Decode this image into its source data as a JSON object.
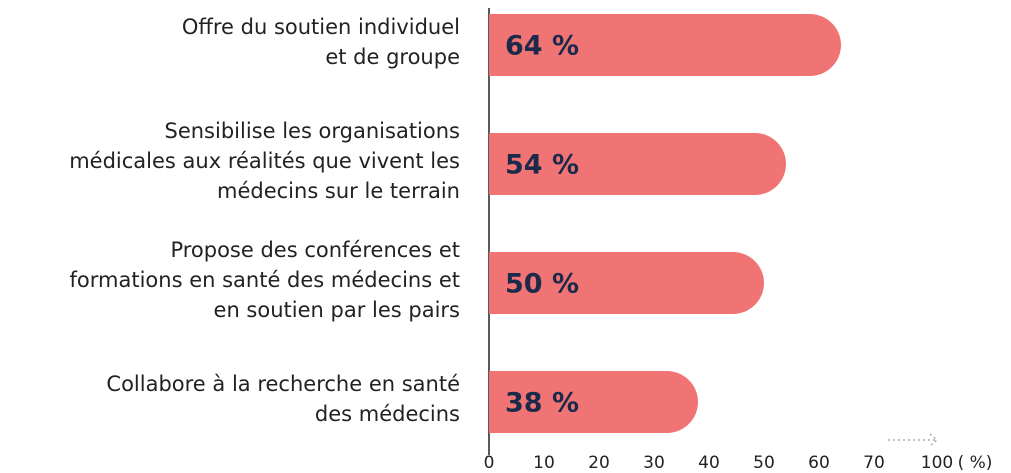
{
  "chart_data": {
    "type": "barh",
    "categories": [
      "Offre du soutien individuel\net de groupe",
      "Sensibilise les organisations\nmédicales aux réalités que vivent les\nmédecins sur le terrain",
      "Propose des conférences et\nformations en santé des médecins et\nen soutien par les pairs",
      "Collabore à la recherche en santé\ndes médecins"
    ],
    "values": [
      64,
      54,
      50,
      38
    ],
    "value_labels": [
      "64 %",
      "54 %",
      "50 %",
      "38 %"
    ],
    "color": "#f07474",
    "xlim": [
      0,
      70
    ],
    "xticks": [
      0,
      10,
      20,
      30,
      40,
      50,
      60,
      70,
      100
    ],
    "xlabel": "( %)",
    "axis_break": true,
    "grid": false
  }
}
